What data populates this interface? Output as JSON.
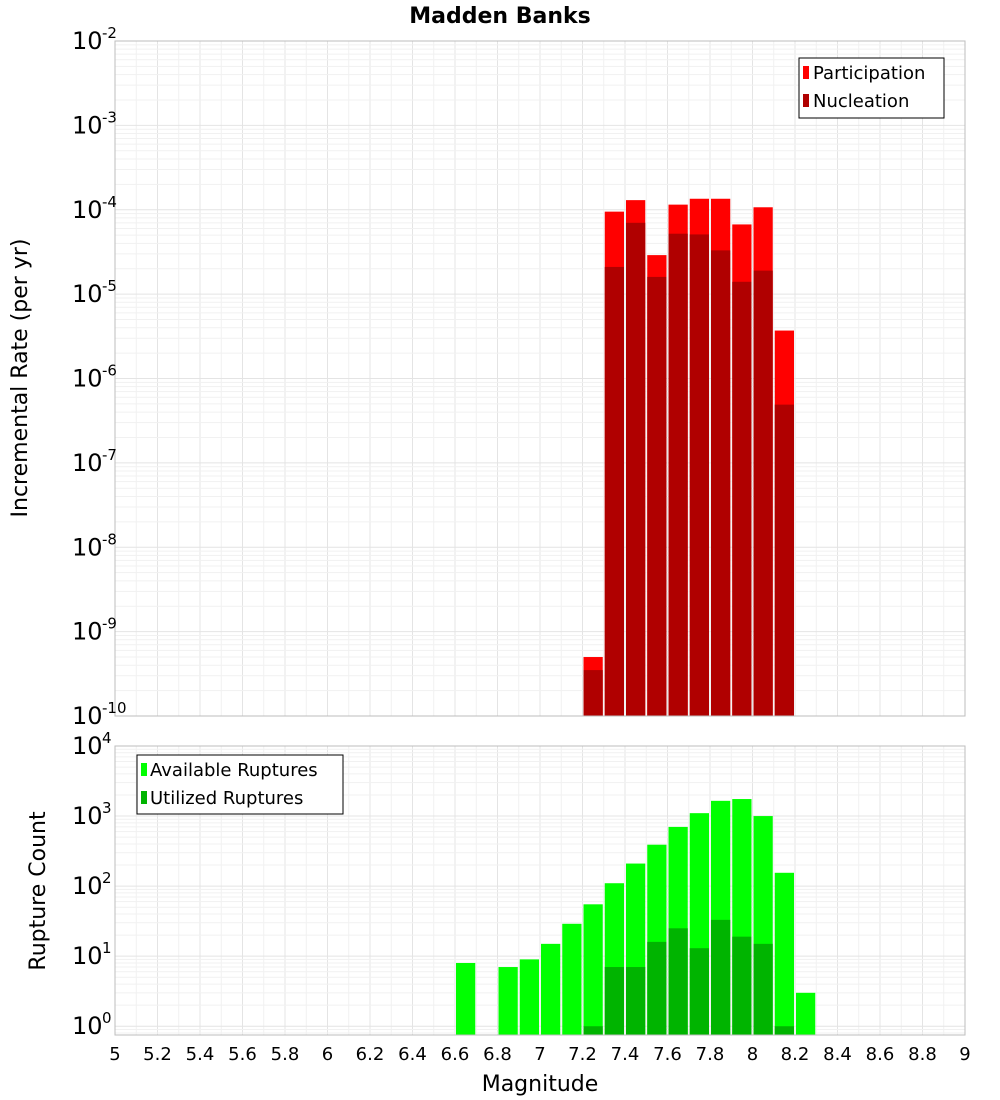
{
  "chart_data": [
    {
      "type": "bar",
      "title": "Madden Banks",
      "ylabel": "Incremental Rate (per yr)",
      "yscale": "log",
      "ylim": [
        1e-10,
        0.01
      ],
      "xlim": [
        5,
        9
      ],
      "x": [
        7.25,
        7.35,
        7.45,
        7.55,
        7.65,
        7.75,
        7.85,
        7.95,
        8.05,
        8.15
      ],
      "series": [
        {
          "name": "Participation",
          "color": "#ff0000",
          "values": [
            5e-10,
            9.5e-05,
            0.00013,
            2.9e-05,
            0.000115,
            0.000135,
            0.000135,
            6.7e-05,
            0.000107,
            3.7e-06
          ]
        },
        {
          "name": "Nucleation",
          "color": "#b00000",
          "values": [
            3.5e-10,
            2.1e-05,
            7e-05,
            1.6e-05,
            5.2e-05,
            5.1e-05,
            3.3e-05,
            1.4e-05,
            1.9e-05,
            4.9e-07
          ]
        }
      ],
      "legend": "top-right",
      "grid": true
    },
    {
      "type": "bar",
      "xlabel": "Magnitude",
      "ylabel": "Rupture Count",
      "yscale": "log",
      "ylim": [
        0.75,
        10000.0
      ],
      "xlim": [
        5,
        9
      ],
      "x": [
        6.65,
        6.85,
        6.95,
        7.05,
        7.15,
        7.25,
        7.35,
        7.45,
        7.55,
        7.65,
        7.75,
        7.85,
        7.95,
        8.05,
        8.15,
        8.25
      ],
      "series": [
        {
          "name": "Available Ruptures",
          "color": "#00ff00",
          "values": [
            8,
            7,
            9,
            15,
            29,
            55,
            110,
            210,
            390,
            700,
            1100,
            1650,
            1750,
            1000,
            155,
            3
          ]
        },
        {
          "name": "Utilized Ruptures",
          "color": "#00b400",
          "values": [
            0,
            0,
            0,
            0,
            0,
            1,
            7,
            7,
            16,
            25,
            13,
            33,
            19,
            15,
            1,
            0
          ]
        }
      ],
      "legend": "top-left",
      "grid": true
    }
  ],
  "xticks": [
    "5",
    "5.2",
    "5.4",
    "5.6",
    "5.8",
    "6",
    "6.2",
    "6.4",
    "6.6",
    "6.8",
    "7",
    "7.2",
    "7.4",
    "7.6",
    "7.8",
    "8",
    "8.2",
    "8.4",
    "8.6",
    "8.8",
    "9"
  ],
  "top_yticks": [
    {
      "base": "10",
      "exp": "-10",
      "exponent": -10
    },
    {
      "base": "10",
      "exp": "-9",
      "exponent": -9
    },
    {
      "base": "10",
      "exp": "-8",
      "exponent": -8
    },
    {
      "base": "10",
      "exp": "-7",
      "exponent": -7
    },
    {
      "base": "10",
      "exp": "-6",
      "exponent": -6
    },
    {
      "base": "10",
      "exp": "-5",
      "exponent": -5
    },
    {
      "base": "10",
      "exp": "-4",
      "exponent": -4
    },
    {
      "base": "10",
      "exp": "-3",
      "exponent": -3
    },
    {
      "base": "10",
      "exp": "-2",
      "exponent": -2
    }
  ],
  "bottom_yticks": [
    {
      "base": "10",
      "exp": "0",
      "exponent": 0
    },
    {
      "base": "10",
      "exp": "1",
      "exponent": 1
    },
    {
      "base": "10",
      "exp": "2",
      "exponent": 2
    },
    {
      "base": "10",
      "exp": "3",
      "exponent": 3
    },
    {
      "base": "10",
      "exp": "4",
      "exponent": 4
    }
  ]
}
